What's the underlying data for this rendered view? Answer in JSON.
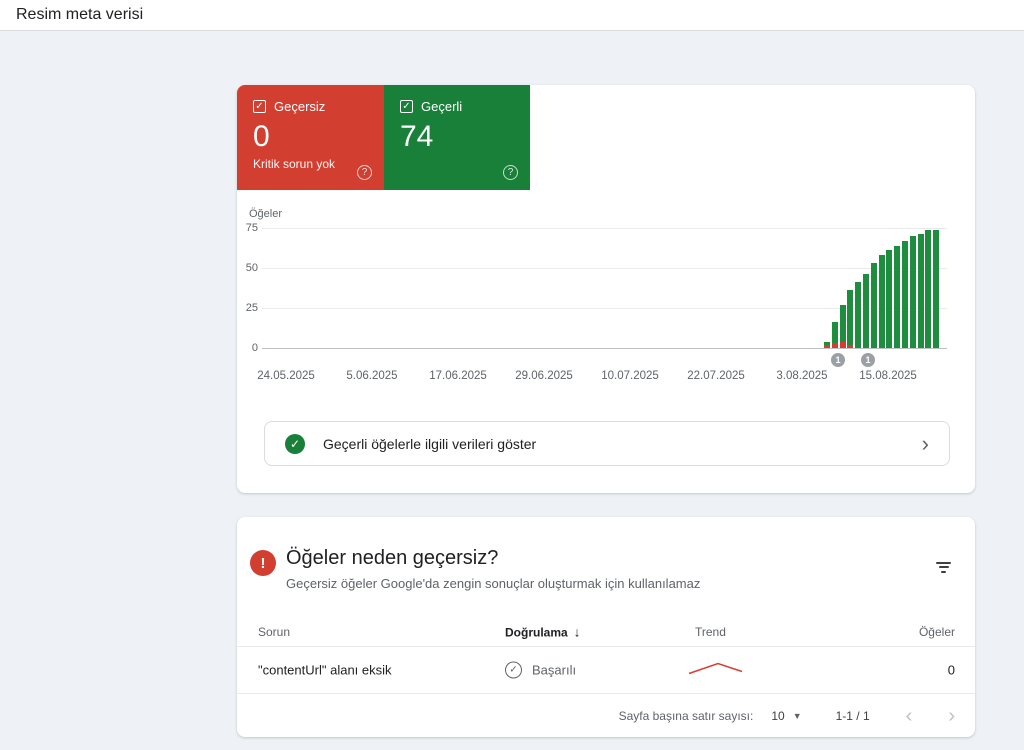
{
  "header": {
    "title": "Resim meta verisi"
  },
  "summary_cards": {
    "invalid": {
      "label": "Geçersiz",
      "value": "0",
      "note": "Kritik sorun yok",
      "color": "#D23F31"
    },
    "valid": {
      "label": "Geçerli",
      "value": "74",
      "color": "#188038"
    }
  },
  "chart_data": {
    "type": "bar",
    "stacked": true,
    "ylabel": "Öğeler",
    "yticks": [
      75,
      50,
      25,
      0
    ],
    "ylim": [
      0,
      75
    ],
    "grid": "horizontal",
    "x_axis_labels": [
      "24.05.2025",
      "5.06.2025",
      "17.06.2025",
      "29.06.2025",
      "10.07.2025",
      "22.07.2025",
      "3.08.2025",
      "15.08.2025"
    ],
    "note": "Flat at 0 until early August; daily stacked bars thereafter",
    "series": [
      {
        "name": "Geçerli",
        "color": "#1E8E3E",
        "values": [
          2,
          13,
          23,
          34,
          41,
          46,
          53,
          58,
          61,
          64,
          67,
          70,
          71,
          74,
          74
        ]
      },
      {
        "name": "Geçersiz",
        "color": "#D23F31",
        "values": [
          2,
          3,
          4,
          2,
          0,
          0,
          0,
          0,
          0,
          0,
          0,
          0,
          0,
          0,
          0
        ]
      }
    ],
    "annotations": [
      {
        "label": "1"
      },
      {
        "label": "1"
      }
    ]
  },
  "show_valid_row": {
    "label": "Geçerli öğelerle ilgili verileri göster"
  },
  "issues_panel": {
    "title": "Öğeler neden geçersiz?",
    "subtitle": "Geçersiz öğeler Google'da zengin sonuçlar oluşturmak için kullanılamaz",
    "columns": {
      "issue": "Sorun",
      "validation": "Doğrulama",
      "trend": "Trend",
      "items": "Öğeler"
    },
    "sort_arrow": "↓",
    "rows": [
      {
        "issue": "\"contentUrl\" alanı eksik",
        "validation": "Başarılı",
        "items": "0",
        "trend_color": "#D23F31"
      }
    ],
    "pagination": {
      "rows_per_page_label": "Sayfa başına satır sayısı:",
      "rows_per_page": "10",
      "range": "1-1 / 1"
    }
  }
}
